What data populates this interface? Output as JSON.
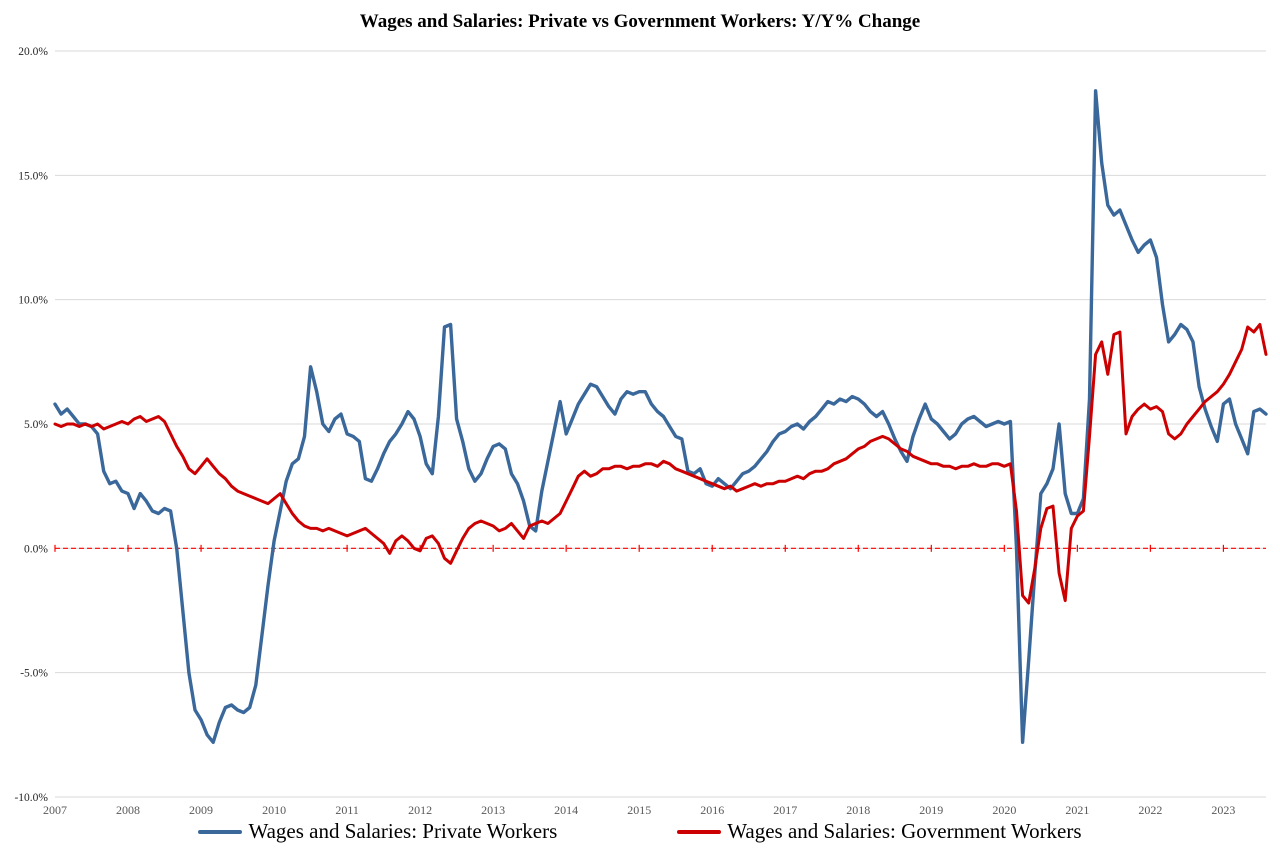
{
  "chart_data": {
    "type": "line",
    "title": "Wages and Salaries: Private vs Government Workers: Y/Y% Change",
    "xlabel": "",
    "ylabel": "",
    "ylim": [
      -10,
      20
    ],
    "yticks": [
      20,
      15,
      10,
      5,
      0,
      -5,
      -10
    ],
    "ytick_labels": [
      "20.0%",
      "15.0%",
      "10.0%",
      "5.0%",
      "0.0%",
      "-5.0%",
      "-10.0%"
    ],
    "xticks": [
      2007,
      2008,
      2009,
      2010,
      2011,
      2012,
      2013,
      2014,
      2015,
      2016,
      2017,
      2018,
      2019,
      2020,
      2021,
      2022,
      2023
    ],
    "grid": true,
    "grid_color": "#d9d9d9",
    "zero_line_color": "#ff0000",
    "legend_position": "bottom",
    "x_frequency": "monthly",
    "x_start": "2007-01",
    "x_end": "2023-08",
    "series": [
      {
        "name": "Wages and Salaries: Private Workers",
        "color": "#3a689b",
        "width": 3.4,
        "values": [
          5.8,
          5.4,
          5.6,
          5.3,
          5.0,
          5.0,
          4.9,
          4.6,
          3.1,
          2.6,
          2.7,
          2.3,
          2.2,
          1.6,
          2.2,
          1.9,
          1.5,
          1.4,
          1.6,
          1.5,
          0.0,
          -2.5,
          -5.0,
          -6.5,
          -6.9,
          -7.5,
          -7.8,
          -7.0,
          -6.4,
          -6.3,
          -6.5,
          -6.6,
          -6.4,
          -5.5,
          -3.5,
          -1.5,
          0.3,
          1.5,
          2.7,
          3.4,
          3.6,
          4.5,
          7.3,
          6.3,
          5.0,
          4.7,
          5.2,
          5.4,
          4.6,
          4.5,
          4.3,
          2.8,
          2.7,
          3.2,
          3.8,
          4.3,
          4.6,
          5.0,
          5.5,
          5.2,
          4.5,
          3.4,
          3.0,
          5.3,
          8.9,
          9.0,
          5.2,
          4.3,
          3.2,
          2.7,
          3.0,
          3.6,
          4.1,
          4.2,
          4.0,
          3.0,
          2.6,
          1.9,
          0.9,
          0.7,
          2.3,
          3.5,
          4.7,
          5.9,
          4.6,
          5.2,
          5.8,
          6.2,
          6.6,
          6.5,
          6.1,
          5.7,
          5.4,
          6.0,
          6.3,
          6.2,
          6.3,
          6.3,
          5.8,
          5.5,
          5.3,
          4.9,
          4.5,
          4.4,
          3.1,
          3.0,
          3.2,
          2.6,
          2.5,
          2.8,
          2.6,
          2.4,
          2.7,
          3.0,
          3.1,
          3.3,
          3.6,
          3.9,
          4.3,
          4.6,
          4.7,
          4.9,
          5.0,
          4.8,
          5.1,
          5.3,
          5.6,
          5.9,
          5.8,
          6.0,
          5.9,
          6.1,
          6.0,
          5.8,
          5.5,
          5.3,
          5.5,
          5.0,
          4.4,
          3.9,
          3.5,
          4.5,
          5.2,
          5.8,
          5.2,
          5.0,
          4.7,
          4.4,
          4.6,
          5.0,
          5.2,
          5.3,
          5.1,
          4.9,
          5.0,
          5.1,
          5.0,
          5.1,
          0.0,
          -7.8,
          -4.5,
          -1.0,
          2.2,
          2.6,
          3.2,
          5.0,
          2.2,
          1.4,
          1.4,
          2.0,
          6.0,
          18.4,
          15.5,
          13.8,
          13.4,
          13.6,
          13.0,
          12.4,
          11.9,
          12.2,
          12.4,
          11.7,
          9.8,
          8.3,
          8.6,
          9.0,
          8.8,
          8.3,
          6.5,
          5.6,
          4.9,
          4.3,
          5.8,
          6.0,
          5.0,
          4.4,
          3.8,
          5.5,
          5.6,
          5.4
        ]
      },
      {
        "name": "Wages and Salaries: Government Workers",
        "color": "#cc0000",
        "width": 3.0,
        "values": [
          5.0,
          4.9,
          5.0,
          5.0,
          4.9,
          5.0,
          4.9,
          5.0,
          4.8,
          4.9,
          5.0,
          5.1,
          5.0,
          5.2,
          5.3,
          5.1,
          5.2,
          5.3,
          5.1,
          4.6,
          4.1,
          3.7,
          3.2,
          3.0,
          3.3,
          3.6,
          3.3,
          3.0,
          2.8,
          2.5,
          2.3,
          2.2,
          2.1,
          2.0,
          1.9,
          1.8,
          2.0,
          2.2,
          1.8,
          1.4,
          1.1,
          0.9,
          0.8,
          0.8,
          0.7,
          0.8,
          0.7,
          0.6,
          0.5,
          0.6,
          0.7,
          0.8,
          0.6,
          0.4,
          0.2,
          -0.2,
          0.3,
          0.5,
          0.3,
          0.0,
          -0.1,
          0.4,
          0.5,
          0.2,
          -0.4,
          -0.6,
          -0.1,
          0.4,
          0.8,
          1.0,
          1.1,
          1.0,
          0.9,
          0.7,
          0.8,
          1.0,
          0.7,
          0.4,
          0.9,
          1.0,
          1.1,
          1.0,
          1.2,
          1.4,
          1.9,
          2.4,
          2.9,
          3.1,
          2.9,
          3.0,
          3.2,
          3.2,
          3.3,
          3.3,
          3.2,
          3.3,
          3.3,
          3.4,
          3.4,
          3.3,
          3.5,
          3.4,
          3.2,
          3.1,
          3.0,
          2.9,
          2.8,
          2.7,
          2.6,
          2.5,
          2.4,
          2.5,
          2.3,
          2.4,
          2.5,
          2.6,
          2.5,
          2.6,
          2.6,
          2.7,
          2.7,
          2.8,
          2.9,
          2.8,
          3.0,
          3.1,
          3.1,
          3.2,
          3.4,
          3.5,
          3.6,
          3.8,
          4.0,
          4.1,
          4.3,
          4.4,
          4.5,
          4.4,
          4.2,
          4.0,
          3.9,
          3.7,
          3.6,
          3.5,
          3.4,
          3.4,
          3.3,
          3.3,
          3.2,
          3.3,
          3.3,
          3.4,
          3.3,
          3.3,
          3.4,
          3.4,
          3.3,
          3.4,
          1.5,
          -1.9,
          -2.2,
          -0.8,
          0.8,
          1.6,
          1.7,
          -1.0,
          -2.1,
          0.8,
          1.3,
          1.5,
          4.5,
          7.8,
          8.3,
          7.0,
          8.6,
          8.7,
          4.6,
          5.3,
          5.6,
          5.8,
          5.6,
          5.7,
          5.5,
          4.6,
          4.4,
          4.6,
          5.0,
          5.3,
          5.6,
          5.9,
          6.1,
          6.3,
          6.6,
          7.0,
          7.5,
          8.0,
          8.9,
          8.7,
          9.0,
          7.8
        ]
      }
    ]
  }
}
